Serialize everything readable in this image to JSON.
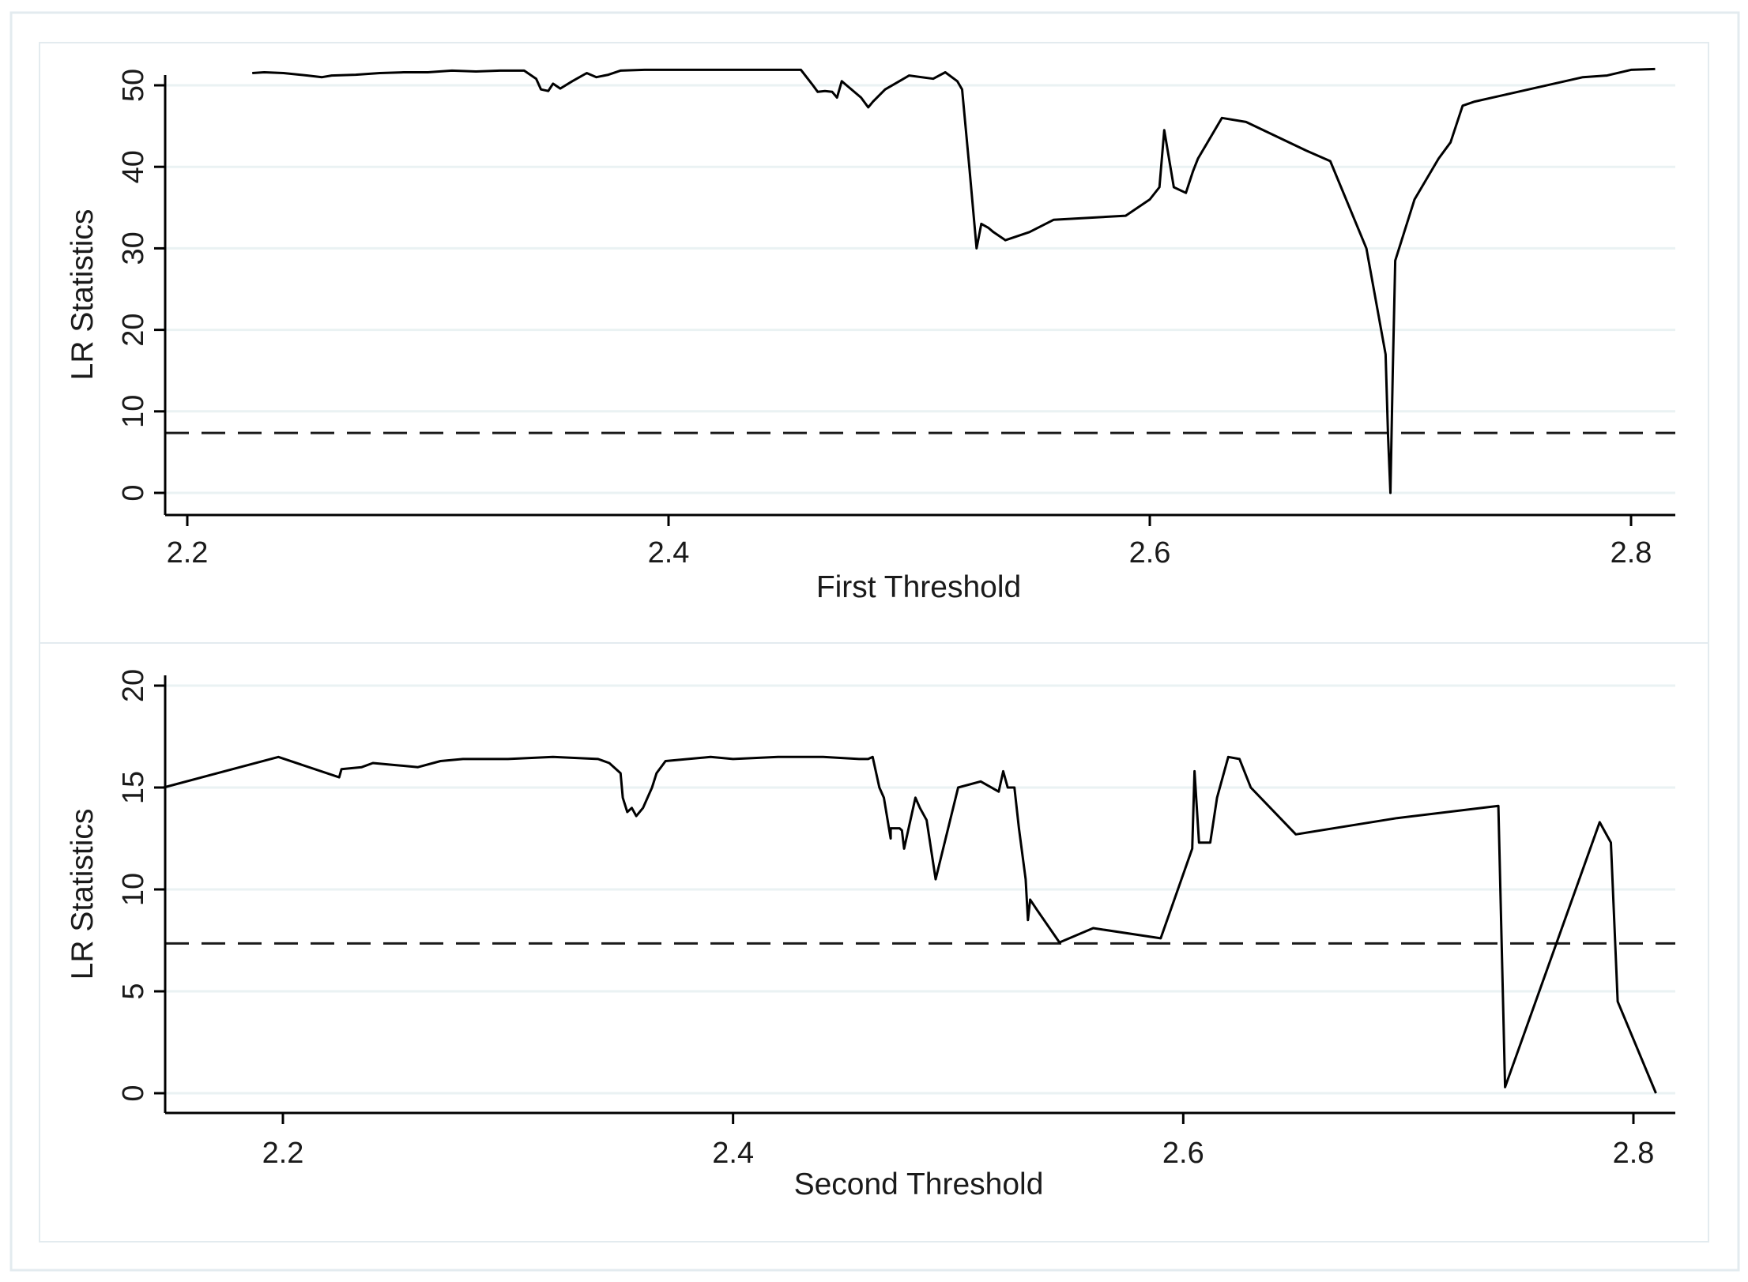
{
  "colors": {
    "line": "#000000",
    "grid": "#eaf2f3",
    "frame": "#e3ebef",
    "background": "#ffffff"
  },
  "chart_data": [
    {
      "type": "line",
      "title": "",
      "xlabel": "First Threshold",
      "ylabel": "LR Statistics",
      "xlim": [
        2.17,
        2.81
      ],
      "ylim": [
        0,
        52
      ],
      "xticks": [
        2.2,
        2.4,
        2.6,
        2.8
      ],
      "xtick_labels": [
        "2.2",
        "2.4",
        "2.6",
        "2.8"
      ],
      "yticks": [
        0,
        10,
        20,
        30,
        40,
        50
      ],
      "ytick_labels": [
        "0",
        "10",
        "20",
        "30",
        "40",
        "50"
      ],
      "grid": true,
      "critical_value": 7.35,
      "series": [
        {
          "x": [
            2.227,
            2.232,
            2.24,
            2.25,
            2.256,
            2.26,
            2.27,
            2.28,
            2.29,
            2.3,
            2.31,
            2.32,
            2.33,
            2.34,
            2.345,
            2.347,
            2.35,
            2.352,
            2.355,
            2.36,
            2.363,
            2.366,
            2.37,
            2.375,
            2.38,
            2.39,
            2.4,
            2.42,
            2.44,
            2.455,
            2.46,
            2.462,
            2.465,
            2.468,
            2.47,
            2.472,
            2.474,
            2.48,
            2.483,
            2.485,
            2.49,
            2.5,
            2.51,
            2.515,
            2.52,
            2.522,
            2.525,
            2.528,
            2.53,
            2.533,
            2.535,
            2.54,
            2.55,
            2.56,
            2.59,
            2.6,
            2.604,
            2.606,
            2.61,
            2.615,
            2.618,
            2.62,
            2.63,
            2.64,
            2.665,
            2.675,
            2.69,
            2.698,
            2.699,
            2.7,
            2.701,
            2.702,
            2.71,
            2.72,
            2.725,
            2.73,
            2.735,
            2.75,
            2.78,
            2.79,
            2.8,
            2.81
          ],
          "y": [
            51.5,
            51.6,
            51.5,
            51.2,
            51.0,
            51.2,
            51.3,
            51.5,
            51.6,
            51.6,
            51.8,
            51.7,
            51.8,
            51.8,
            50.8,
            49.5,
            49.3,
            50.2,
            49.6,
            50.5,
            51.0,
            51.5,
            51.0,
            51.3,
            51.8,
            51.9,
            51.9,
            51.9,
            51.9,
            51.9,
            50.0,
            49.2,
            49.3,
            49.2,
            48.5,
            50.5,
            50.0,
            48.5,
            47.3,
            48.0,
            49.5,
            51.2,
            50.8,
            51.6,
            50.5,
            49.5,
            40.0,
            30.0,
            33.0,
            32.5,
            32.0,
            31.0,
            32.0,
            33.5,
            34.0,
            36.0,
            37.5,
            44.5,
            37.5,
            36.8,
            39.5,
            41.0,
            46.0,
            45.5,
            42.0,
            40.7,
            30.0,
            17.0,
            7.0,
            0.0,
            15.0,
            28.5,
            36.0,
            41.0,
            43.0,
            47.5,
            48.0,
            49.0,
            51.0,
            51.2,
            51.9,
            52.0
          ]
        }
      ]
    },
    {
      "type": "line",
      "title": "",
      "xlabel": "Second Threshold",
      "ylabel": "LR Statistics",
      "xlim": [
        2.14,
        2.81
      ],
      "ylim": [
        0,
        20.5
      ],
      "xticks": [
        2.2,
        2.4,
        2.6,
        2.8
      ],
      "xtick_labels": [
        "2.2",
        "2.4",
        "2.6",
        "2.8"
      ],
      "yticks": [
        0,
        5,
        10,
        15,
        20
      ],
      "ytick_labels": [
        "0",
        "5",
        "10",
        "15",
        "20"
      ],
      "grid": true,
      "critical_value": 7.35,
      "series": [
        {
          "x": [
            2.147,
            2.198,
            2.225,
            2.226,
            2.235,
            2.24,
            2.25,
            2.26,
            2.27,
            2.28,
            2.3,
            2.32,
            2.34,
            2.345,
            2.35,
            2.351,
            2.353,
            2.355,
            2.357,
            2.36,
            2.364,
            2.366,
            2.37,
            2.38,
            2.39,
            2.4,
            2.42,
            2.44,
            2.456,
            2.46,
            2.462,
            2.465,
            2.467,
            2.47,
            2.47,
            2.474,
            2.475,
            2.476,
            2.481,
            2.483,
            2.486,
            2.49,
            2.5,
            2.51,
            2.518,
            2.52,
            2.522,
            2.525,
            2.527,
            2.53,
            2.531,
            2.532,
            2.535,
            2.545,
            2.56,
            2.59,
            2.604,
            2.605,
            2.607,
            2.612,
            2.615,
            2.62,
            2.625,
            2.63,
            2.65,
            2.695,
            2.74,
            2.743,
            2.785,
            2.79,
            2.793,
            2.81
          ],
          "y": [
            15.0,
            16.5,
            15.5,
            15.9,
            16.0,
            16.2,
            16.1,
            16.0,
            16.3,
            16.4,
            16.4,
            16.5,
            16.4,
            16.2,
            15.7,
            14.5,
            13.8,
            14.0,
            13.6,
            14.0,
            15.0,
            15.7,
            16.3,
            16.4,
            16.5,
            16.4,
            16.5,
            16.5,
            16.4,
            16.4,
            16.5,
            15.0,
            14.5,
            12.5,
            13.0,
            13.0,
            12.9,
            12.0,
            14.5,
            14.0,
            13.4,
            10.5,
            15.0,
            15.3,
            14.8,
            15.8,
            15.0,
            15.0,
            13.0,
            10.5,
            8.5,
            9.5,
            9.0,
            7.4,
            8.1,
            7.6,
            12.0,
            15.8,
            12.3,
            12.3,
            14.5,
            16.5,
            16.4,
            15.0,
            12.7,
            13.5,
            14.1,
            0.3,
            13.3,
            12.3,
            4.5,
            0.0
          ]
        }
      ]
    }
  ]
}
